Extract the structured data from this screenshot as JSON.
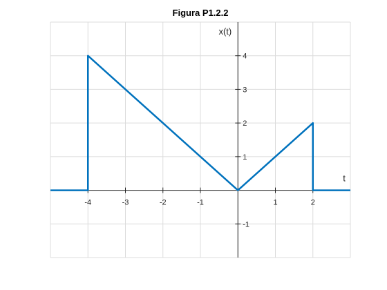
{
  "chart_data": {
    "type": "line",
    "title": "Figura P1.2.2",
    "xlabel": "t",
    "ylabel": "x(t)",
    "xlim": [
      -5,
      3
    ],
    "ylim": [
      -2,
      5
    ],
    "xticks": [
      -4,
      -3,
      -2,
      -1,
      1,
      2
    ],
    "yticks": [
      -1,
      1,
      2,
      3,
      4
    ],
    "grid": true,
    "colors": {
      "series": "#0072BD",
      "grid": "#dcdcdc",
      "axis": "#262626"
    },
    "series": [
      {
        "x": [
          -5,
          -4,
          -4,
          0,
          2,
          2,
          3
        ],
        "y": [
          0,
          0,
          4,
          0,
          2,
          0,
          0
        ]
      }
    ]
  }
}
